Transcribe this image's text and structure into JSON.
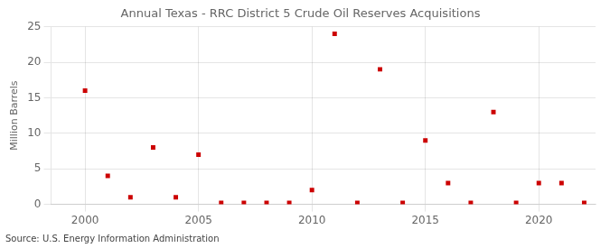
{
  "chart_data": {
    "type": "scatter",
    "title": "Annual Texas - RRC District 5 Crude Oil Reserves Acquisitions",
    "ylabel": "Million Barrels",
    "annotation": "Source: U.S. Energy Information Administration",
    "x": [
      2000,
      2001,
      2002,
      2003,
      2004,
      2005,
      2006,
      2007,
      2008,
      2009,
      2010,
      2011,
      2012,
      2013,
      2014,
      2015,
      2016,
      2017,
      2018,
      2019,
      2020,
      2021,
      2022
    ],
    "values": [
      16.0,
      4.0,
      1.0,
      8.0,
      1.0,
      7.0,
      0.2,
      0.2,
      0.2,
      0.2,
      2.0,
      24.0,
      0.2,
      19.0,
      0.2,
      9.0,
      3.0,
      0.2,
      13.0,
      0.2,
      3.0,
      3.0,
      0.2
    ],
    "color": "#CC0000",
    "marker": "square",
    "xlim": [
      1998.5,
      2022.5
    ],
    "xticks": [
      2000,
      2005,
      2010,
      2015,
      2020
    ],
    "ylim": [
      0,
      25
    ],
    "yticks": [
      0,
      5,
      10,
      15,
      20,
      25
    ],
    "grid": true
  }
}
